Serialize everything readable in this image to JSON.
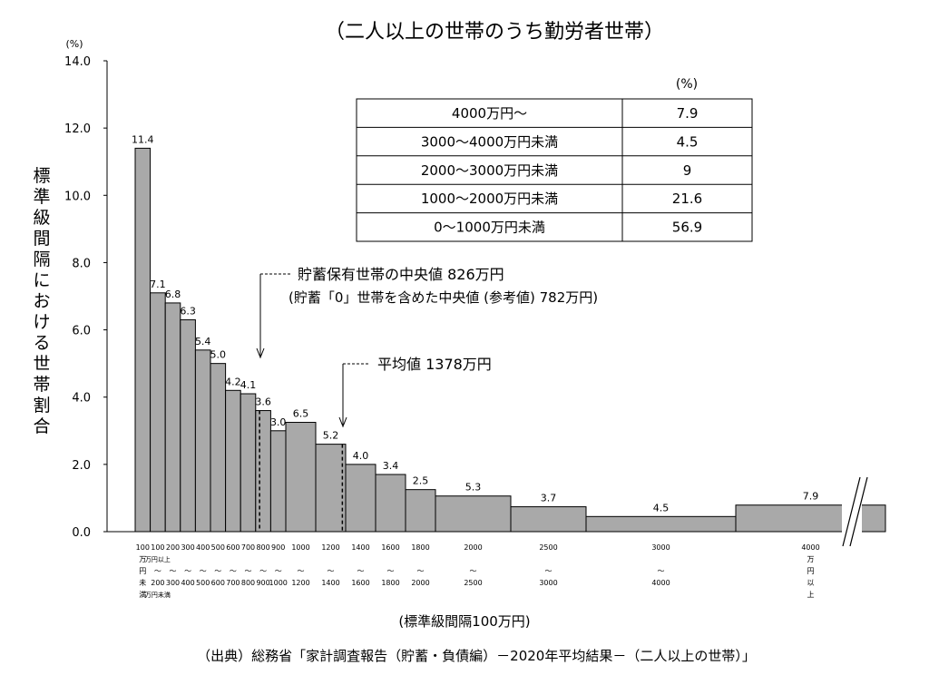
{
  "title": "（二人以上の世帯のうち勤労者世帯）",
  "source": "（出典）総務省「家計調査報告（貯蓄・負債編）－2020年平均結果－（二人以上の世帯）」",
  "chart_data": {
    "type": "bar",
    "ylabel": "標準級間隔における世帯割合",
    "yunit": "(%)",
    "xlabel": "(標準級間隔100万円)",
    "ylim": [
      0,
      14
    ],
    "yticks": [
      "0.0",
      "2.0",
      "4.0",
      "6.0",
      "8.0",
      "10.0",
      "12.0",
      "14.0"
    ],
    "bars": [
      {
        "from": 0,
        "to": 100,
        "value": 11.4,
        "label": "11.4",
        "category": [
          "100",
          "万",
          "円",
          "未",
          "満"
        ]
      },
      {
        "from": 100,
        "to": 200,
        "value": 7.1,
        "label": "7.1",
        "category": [
          "100",
          "万円以上",
          "～",
          "200",
          "万円未満"
        ]
      },
      {
        "from": 200,
        "to": 300,
        "value": 6.8,
        "label": "6.8",
        "category": [
          "200",
          "",
          "～",
          "300",
          ""
        ]
      },
      {
        "from": 300,
        "to": 400,
        "value": 6.3,
        "label": "6.3",
        "category": [
          "300",
          "",
          "～",
          "400",
          ""
        ]
      },
      {
        "from": 400,
        "to": 500,
        "value": 5.4,
        "label": "5.4",
        "category": [
          "400",
          "",
          "～",
          "500",
          ""
        ]
      },
      {
        "from": 500,
        "to": 600,
        "value": 5.0,
        "label": "5.0",
        "category": [
          "500",
          "",
          "～",
          "600",
          ""
        ]
      },
      {
        "from": 600,
        "to": 700,
        "value": 4.2,
        "label": "4.2",
        "category": [
          "600",
          "",
          "～",
          "700",
          ""
        ]
      },
      {
        "from": 700,
        "to": 800,
        "value": 4.1,
        "label": "4.1",
        "category": [
          "700",
          "",
          "～",
          "800",
          ""
        ]
      },
      {
        "from": 800,
        "to": 900,
        "value": 3.6,
        "label": "3.6",
        "category": [
          "800",
          "",
          "～",
          "900",
          ""
        ]
      },
      {
        "from": 900,
        "to": 1000,
        "value": 3.0,
        "label": "3.0",
        "category": [
          "900",
          "",
          "～",
          "1000",
          ""
        ]
      },
      {
        "from": 1000,
        "to": 1200,
        "value": 6.5,
        "label": "6.5",
        "category": [
          "1000",
          "",
          "～",
          "1200",
          ""
        ]
      },
      {
        "from": 1200,
        "to": 1400,
        "value": 5.2,
        "label": "5.2",
        "category": [
          "1200",
          "",
          "～",
          "1400",
          ""
        ]
      },
      {
        "from": 1400,
        "to": 1600,
        "value": 4.0,
        "label": "4.0",
        "category": [
          "1400",
          "",
          "～",
          "1600",
          ""
        ]
      },
      {
        "from": 1600,
        "to": 1800,
        "value": 3.4,
        "label": "3.4",
        "category": [
          "1600",
          "",
          "～",
          "1800",
          ""
        ]
      },
      {
        "from": 1800,
        "to": 2000,
        "value": 2.5,
        "label": "2.5",
        "category": [
          "1800",
          "",
          "～",
          "2000",
          ""
        ]
      },
      {
        "from": 2000,
        "to": 2500,
        "value": 5.3,
        "label": "5.3",
        "category": [
          "2000",
          "",
          "～",
          "2500",
          ""
        ]
      },
      {
        "from": 2500,
        "to": 3000,
        "value": 3.7,
        "label": "3.7",
        "category": [
          "2500",
          "",
          "～",
          "3000",
          ""
        ]
      },
      {
        "from": 3000,
        "to": 4000,
        "value": 4.5,
        "label": "4.5",
        "category": [
          "3000",
          "",
          "～",
          "4000",
          ""
        ]
      },
      {
        "from": 4000,
        "to": 5000,
        "value": 7.9,
        "label": "7.9",
        "category": [
          "4000",
          "万",
          "円",
          "以",
          "上"
        ]
      }
    ],
    "annotations": [
      {
        "name": "median",
        "x": 826,
        "lines": [
          "貯蓄保有世帯の中央値 826万円",
          "(貯蓄「0」世帯を含めた中央値 (参考値)  782万円)"
        ]
      },
      {
        "name": "mean",
        "x": 1378,
        "lines": [
          "平均値 1378万円"
        ]
      }
    ],
    "summary_table": {
      "unit": "(%)",
      "rows": [
        {
          "label": "4000万円～",
          "value": "7.9"
        },
        {
          "label": "3000～4000万円未満",
          "value": "4.5"
        },
        {
          "label": "2000～3000万円未満",
          "value": "9"
        },
        {
          "label": "1000～2000万円未満",
          "value": "21.6"
        },
        {
          "label": "0～1000万円未満",
          "value": "56.9"
        }
      ]
    }
  }
}
